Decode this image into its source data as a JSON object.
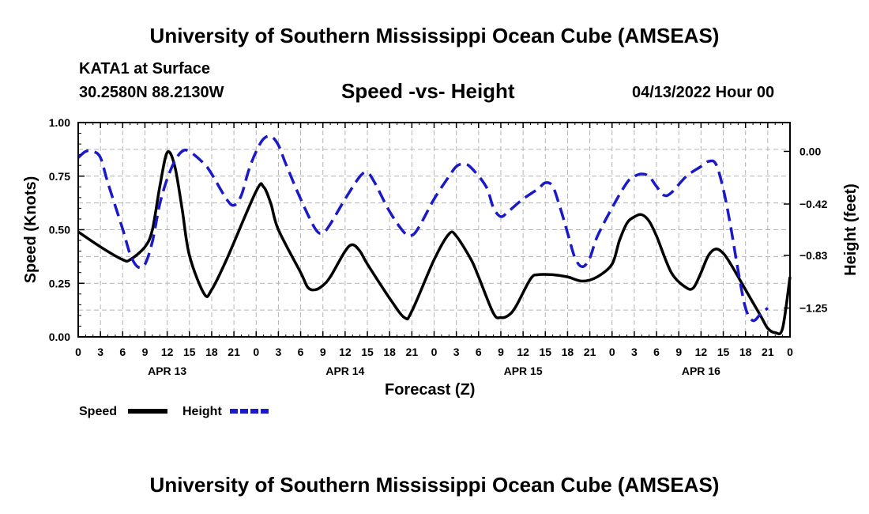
{
  "header": {
    "title": "University of Southern Mississippi Ocean Cube (AMSEAS)",
    "footer_title": "University of Southern Mississippi Ocean Cube (AMSEAS)",
    "station": "KATA1 at Surface",
    "coordinates": "30.2580N  88.2130W",
    "datetime": "04/13/2022 Hour 00"
  },
  "chart_data": {
    "type": "line",
    "title": "Speed -vs- Height",
    "xlabel": "Forecast (Z)",
    "ylabel": "Speed (Knots)",
    "y2label": "Height (feet)",
    "ylim": [
      0,
      1
    ],
    "y2lim": [
      -1.48,
      0.23
    ],
    "xlim": [
      0,
      96
    ],
    "grid": true,
    "x_tick_hours": [
      0,
      3,
      6,
      9,
      12,
      15,
      18,
      21,
      24,
      27,
      30,
      33,
      36,
      39,
      42,
      45,
      48,
      51,
      54,
      57,
      60,
      63,
      66,
      69,
      72,
      75,
      78,
      81,
      84,
      87,
      90,
      93,
      96
    ],
    "x_tick_labels": [
      "0",
      "3",
      "6",
      "9",
      "12",
      "15",
      "18",
      "21",
      "0",
      "3",
      "6",
      "9",
      "12",
      "15",
      "18",
      "21",
      "0",
      "3",
      "6",
      "9",
      "12",
      "15",
      "18",
      "21",
      "0",
      "3",
      "6",
      "9",
      "12",
      "15",
      "18",
      "21",
      "0"
    ],
    "date_labels": [
      {
        "hour": 12,
        "label": "APR 13"
      },
      {
        "hour": 36,
        "label": "APR 14"
      },
      {
        "hour": 60,
        "label": "APR 15"
      },
      {
        "hour": 84,
        "label": "APR 16"
      }
    ],
    "y_ticks": [
      0,
      0.25,
      0.5,
      0.75,
      1.0
    ],
    "y_tick_labels": [
      "0.00",
      "0.25",
      "0.50",
      "0.75",
      "1.00"
    ],
    "y2_ticks": [
      0.0,
      -0.42,
      -0.83,
      -1.25
    ],
    "y2_tick_labels": [
      "0.00",
      "−0.42",
      "−0.83",
      "−1.25"
    ],
    "legend": [
      {
        "name": "Speed",
        "color": "#000000",
        "style": "solid"
      },
      {
        "name": "Height",
        "color": "#1a1ac8",
        "style": "dashed"
      }
    ],
    "series": [
      {
        "name": "Speed",
        "axis": "left",
        "color": "#000000",
        "points": [
          [
            0,
            0.49
          ],
          [
            3,
            0.42
          ],
          [
            6,
            0.36
          ],
          [
            7,
            0.36
          ],
          [
            9,
            0.42
          ],
          [
            10,
            0.5
          ],
          [
            11,
            0.7
          ],
          [
            12,
            0.86
          ],
          [
            13,
            0.8
          ],
          [
            14,
            0.6
          ],
          [
            15,
            0.38
          ],
          [
            17,
            0.2
          ],
          [
            18,
            0.22
          ],
          [
            20,
            0.36
          ],
          [
            24,
            0.68
          ],
          [
            25,
            0.7
          ],
          [
            26,
            0.62
          ],
          [
            27,
            0.5
          ],
          [
            30,
            0.3
          ],
          [
            31,
            0.23
          ],
          [
            32,
            0.22
          ],
          [
            33,
            0.24
          ],
          [
            34,
            0.28
          ],
          [
            36,
            0.4
          ],
          [
            37,
            0.43
          ],
          [
            38,
            0.4
          ],
          [
            39,
            0.34
          ],
          [
            42,
            0.18
          ],
          [
            44,
            0.09
          ],
          [
            45,
            0.12
          ],
          [
            48,
            0.36
          ],
          [
            50,
            0.48
          ],
          [
            51,
            0.47
          ],
          [
            53,
            0.36
          ],
          [
            54,
            0.28
          ],
          [
            56,
            0.11
          ],
          [
            57,
            0.09
          ],
          [
            58,
            0.1
          ],
          [
            59,
            0.14
          ],
          [
            61,
            0.27
          ],
          [
            62,
            0.29
          ],
          [
            64,
            0.29
          ],
          [
            66,
            0.28
          ],
          [
            68,
            0.26
          ],
          [
            70,
            0.28
          ],
          [
            72,
            0.34
          ],
          [
            73,
            0.45
          ],
          [
            74,
            0.53
          ],
          [
            75,
            0.56
          ],
          [
            76,
            0.57
          ],
          [
            77,
            0.54
          ],
          [
            78,
            0.47
          ],
          [
            80,
            0.3
          ],
          [
            82,
            0.23
          ],
          [
            83,
            0.23
          ],
          [
            84,
            0.3
          ],
          [
            85,
            0.38
          ],
          [
            86,
            0.41
          ],
          [
            87,
            0.39
          ],
          [
            88,
            0.34
          ],
          [
            90,
            0.22
          ],
          [
            92,
            0.1
          ],
          [
            93,
            0.04
          ],
          [
            94,
            0.02
          ],
          [
            95,
            0.04
          ],
          [
            96,
            0.28
          ]
        ]
      },
      {
        "name": "Height",
        "axis": "right",
        "color": "#1a1ac8",
        "points": [
          [
            0,
            -0.05
          ],
          [
            1,
            0.0
          ],
          [
            2,
            0.0
          ],
          [
            3,
            -0.05
          ],
          [
            4,
            -0.25
          ],
          [
            6,
            -0.62
          ],
          [
            7,
            -0.82
          ],
          [
            8,
            -0.92
          ],
          [
            9,
            -0.9
          ],
          [
            10,
            -0.72
          ],
          [
            11,
            -0.42
          ],
          [
            12,
            -0.22
          ],
          [
            13,
            -0.08
          ],
          [
            14,
            0.0
          ],
          [
            15,
            0.0
          ],
          [
            17,
            -0.1
          ],
          [
            18,
            -0.18
          ],
          [
            20,
            -0.38
          ],
          [
            21,
            -0.43
          ],
          [
            22,
            -0.35
          ],
          [
            23,
            -0.15
          ],
          [
            24,
            0.0
          ],
          [
            25,
            0.1
          ],
          [
            26,
            0.12
          ],
          [
            27,
            0.05
          ],
          [
            28,
            -0.1
          ],
          [
            30,
            -0.38
          ],
          [
            32,
            -0.62
          ],
          [
            33,
            -0.65
          ],
          [
            34,
            -0.58
          ],
          [
            36,
            -0.38
          ],
          [
            38,
            -0.2
          ],
          [
            39,
            -0.17
          ],
          [
            40,
            -0.25
          ],
          [
            42,
            -0.48
          ],
          [
            44,
            -0.65
          ],
          [
            45,
            -0.67
          ],
          [
            46,
            -0.6
          ],
          [
            48,
            -0.38
          ],
          [
            50,
            -0.2
          ],
          [
            51,
            -0.12
          ],
          [
            52,
            -0.1
          ],
          [
            53,
            -0.13
          ],
          [
            55,
            -0.28
          ],
          [
            56,
            -0.45
          ],
          [
            57,
            -0.52
          ],
          [
            58,
            -0.48
          ],
          [
            60,
            -0.38
          ],
          [
            62,
            -0.3
          ],
          [
            63,
            -0.25
          ],
          [
            64,
            -0.28
          ],
          [
            65,
            -0.45
          ],
          [
            66,
            -0.65
          ],
          [
            67,
            -0.85
          ],
          [
            68,
            -0.92
          ],
          [
            69,
            -0.85
          ],
          [
            70,
            -0.68
          ],
          [
            72,
            -0.45
          ],
          [
            74,
            -0.25
          ],
          [
            75,
            -0.2
          ],
          [
            76,
            -0.18
          ],
          [
            77,
            -0.2
          ],
          [
            78,
            -0.28
          ],
          [
            79,
            -0.35
          ],
          [
            80,
            -0.33
          ],
          [
            82,
            -0.2
          ],
          [
            84,
            -0.12
          ],
          [
            85,
            -0.08
          ],
          [
            86,
            -0.1
          ],
          [
            87,
            -0.3
          ],
          [
            88,
            -0.6
          ],
          [
            89,
            -0.95
          ],
          [
            90,
            -1.25
          ],
          [
            91,
            -1.35
          ],
          [
            92,
            -1.3
          ],
          [
            93,
            -1.25
          ]
        ]
      }
    ]
  }
}
